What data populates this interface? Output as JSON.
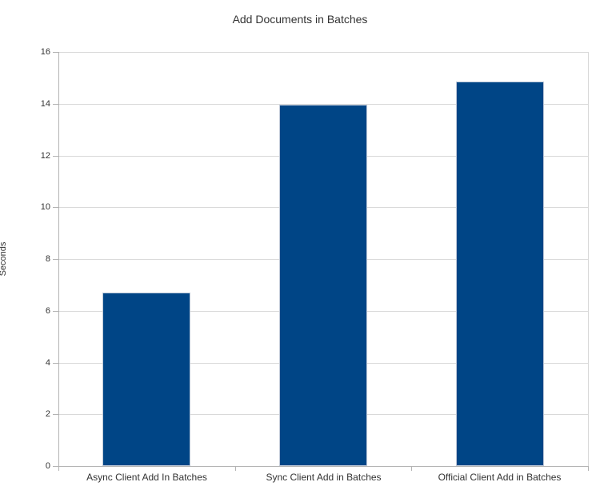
{
  "chart_data": {
    "type": "bar",
    "title": "Add Documents in Batches",
    "xlabel": "",
    "ylabel": "Seconds",
    "categories": [
      "Async Client Add In Batches",
      "Sync Client Add in Batches",
      "Official Client Add in Batches"
    ],
    "values": [
      6.7,
      13.95,
      14.85
    ],
    "ylim": [
      0,
      16
    ],
    "ytick_step": 2,
    "grid": true,
    "legend_position": "none",
    "colors": {
      "bar": "#004586",
      "bar_border": "#bdc8d8",
      "gridline": "#d9d9d9",
      "axis": "#b3b3b3",
      "text": "#333333",
      "background": "#ffffff"
    }
  }
}
